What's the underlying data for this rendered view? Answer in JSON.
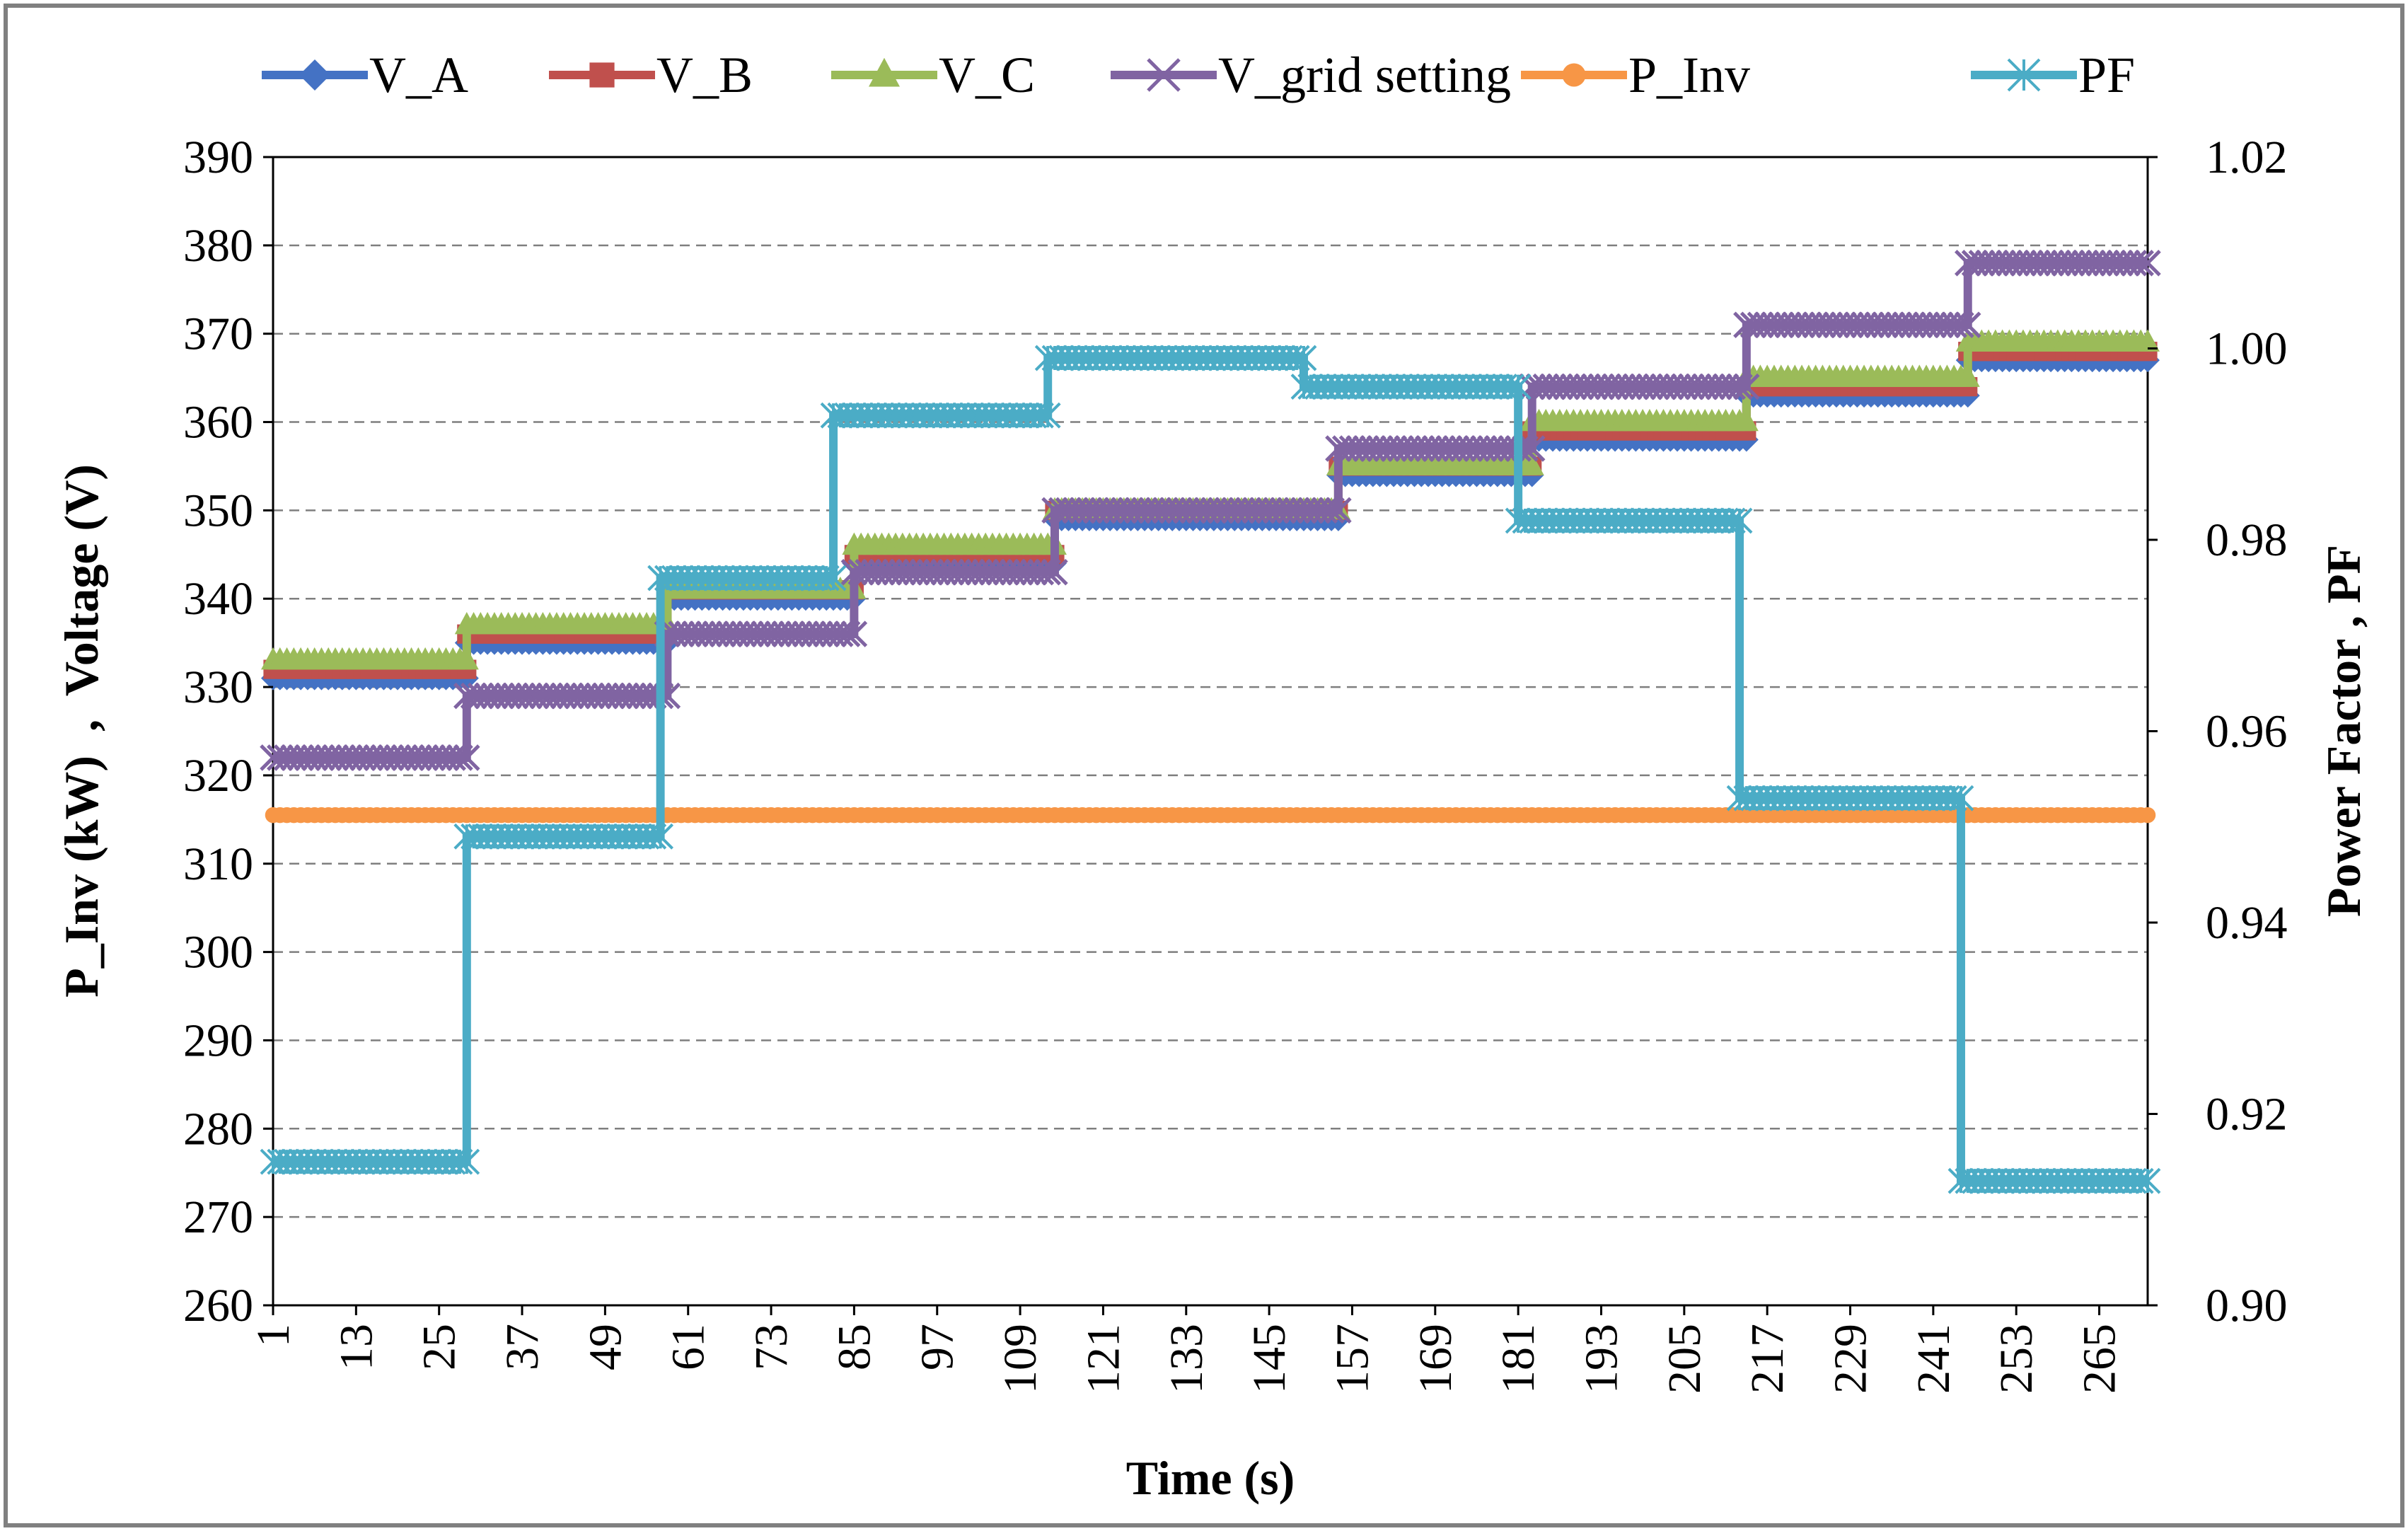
{
  "chart_data": {
    "type": "line",
    "xlabel": "Time (s)",
    "ylabel_left": "P_Inv (kW)  ,  Voltage (V)",
    "ylabel_right": "Power Factor , PF",
    "x_range": [
      1,
      272
    ],
    "x_ticks": [
      "1",
      "13",
      "25",
      "37",
      "49",
      "61",
      "73",
      "85",
      "97",
      "109",
      "121",
      "133",
      "145",
      "157",
      "169",
      "181",
      "193",
      "205",
      "217",
      "229",
      "241",
      "253",
      "265"
    ],
    "y_left": {
      "min": 260,
      "max": 390,
      "step": 10,
      "ticks": [
        "260",
        "270",
        "280",
        "290",
        "300",
        "310",
        "320",
        "330",
        "340",
        "350",
        "360",
        "370",
        "380",
        "390"
      ]
    },
    "y_right": {
      "min": 0.9,
      "max": 1.02,
      "step": 0.02,
      "ticks": [
        "0.90",
        "0.92",
        "0.94",
        "0.96",
        "0.98",
        "1.00",
        "1.02"
      ]
    },
    "legend_position": "top",
    "grid": "horizontal dashed",
    "series": [
      {
        "name": "V_A",
        "axis": "left",
        "color": "#4472C4",
        "marker": "diamond",
        "segments": [
          [
            1,
            29,
            331
          ],
          [
            29,
            58,
            335
          ],
          [
            58,
            85,
            340
          ],
          [
            85,
            114,
            344
          ],
          [
            114,
            155,
            349
          ],
          [
            155,
            183,
            354
          ],
          [
            183,
            214,
            358
          ],
          [
            214,
            246,
            363
          ],
          [
            246,
            272,
            367
          ]
        ]
      },
      {
        "name": "V_B",
        "axis": "left",
        "color": "#C0504D",
        "marker": "square",
        "segments": [
          [
            1,
            29,
            332
          ],
          [
            29,
            58,
            336
          ],
          [
            58,
            85,
            341
          ],
          [
            85,
            114,
            345
          ],
          [
            114,
            155,
            350
          ],
          [
            155,
            183,
            355
          ],
          [
            183,
            214,
            359
          ],
          [
            214,
            246,
            364
          ],
          [
            246,
            272,
            368
          ]
        ]
      },
      {
        "name": "V_C",
        "axis": "left",
        "color": "#9BBB59",
        "marker": "triangle",
        "segments": [
          [
            1,
            29,
            333
          ],
          [
            29,
            58,
            337
          ],
          [
            58,
            85,
            341
          ],
          [
            85,
            114,
            346
          ],
          [
            114,
            155,
            350
          ],
          [
            155,
            183,
            355
          ],
          [
            183,
            214,
            360
          ],
          [
            214,
            246,
            365
          ],
          [
            246,
            272,
            369
          ]
        ]
      },
      {
        "name": "V_grid setting",
        "axis": "left",
        "color": "#8064A2",
        "marker": "x",
        "segments": [
          [
            1,
            29,
            322
          ],
          [
            29,
            58,
            329
          ],
          [
            58,
            85,
            336
          ],
          [
            85,
            114,
            343
          ],
          [
            114,
            155,
            350
          ],
          [
            155,
            183,
            357
          ],
          [
            183,
            214,
            364
          ],
          [
            214,
            246,
            371
          ],
          [
            246,
            272,
            378
          ]
        ]
      },
      {
        "name": "P_Inv",
        "axis": "left",
        "color": "#F79646",
        "marker": "circle",
        "segments": [
          [
            1,
            272,
            315.5
          ]
        ]
      },
      {
        "name": "PF",
        "axis": "right",
        "color": "#4BACC6",
        "marker": "star",
        "segments": [
          [
            1,
            29,
            0.915
          ],
          [
            29,
            57,
            0.949
          ],
          [
            57,
            82,
            0.976
          ],
          [
            82,
            113,
            0.993
          ],
          [
            113,
            150,
            0.999
          ],
          [
            150,
            181,
            0.996
          ],
          [
            181,
            213,
            0.982
          ],
          [
            213,
            245,
            0.953
          ],
          [
            245,
            272,
            0.913
          ]
        ]
      }
    ]
  }
}
